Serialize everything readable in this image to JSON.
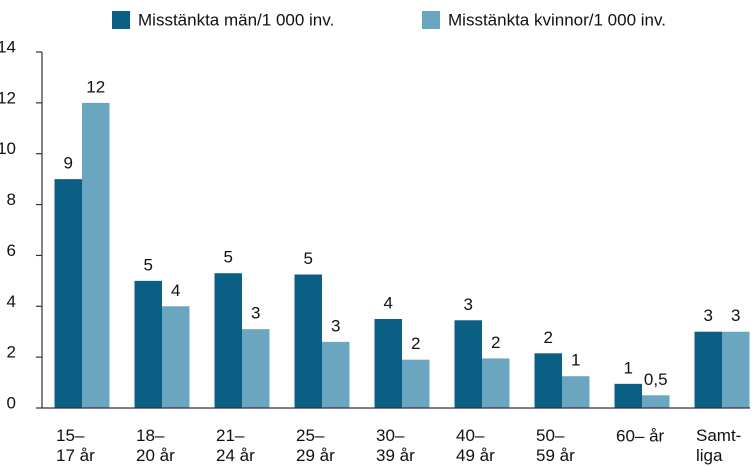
{
  "chart_data": {
    "type": "bar",
    "categories": [
      "15–\n17 år",
      "18–\n20 år",
      "21–\n24 år",
      "25–\n29 år",
      "30–\n39 år",
      "40–\n49 år",
      "50–\n59 år",
      "60– år",
      "Samt-\nliga"
    ],
    "series": [
      {
        "name": "Misstänkta män/1 000 inv.",
        "color": "#0b5e84",
        "values": [
          9,
          5,
          5.3,
          5.25,
          3.5,
          3.45,
          2.15,
          0.95,
          3
        ],
        "value_labels": [
          "9",
          "5",
          "5",
          "5",
          "4",
          "3",
          "2",
          "1",
          "3"
        ]
      },
      {
        "name": "Misstänkta kvinnor/1 000 inv.",
        "color": "#6ba6c1",
        "values": [
          12,
          4,
          3.1,
          2.6,
          1.9,
          1.95,
          1.25,
          0.5,
          3
        ],
        "value_labels": [
          "12",
          "4",
          "3",
          "3",
          "2",
          "2",
          "1",
          "0,5",
          "3"
        ]
      }
    ],
    "ylim": [
      0,
      14
    ],
    "yticks": [
      0,
      2,
      4,
      6,
      8,
      10,
      12,
      14
    ],
    "grid": false,
    "legend": "top"
  }
}
